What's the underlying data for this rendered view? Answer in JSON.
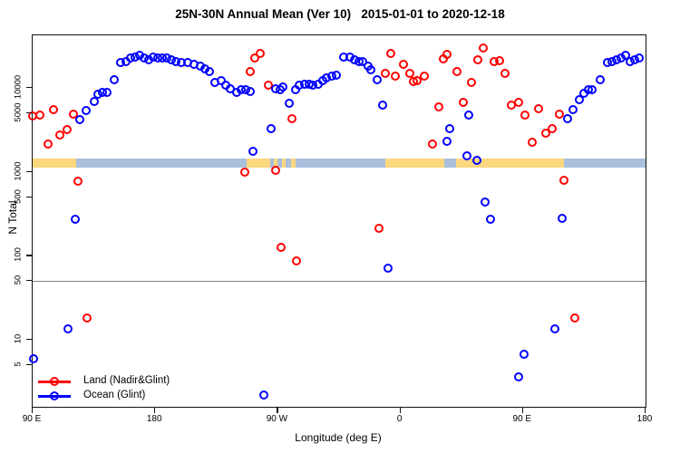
{
  "title": "25N-30N Annual Mean (Ver 10)   2015-01-01 to 2020-12-18",
  "chart_data": {
    "type": "scatter",
    "title": "25N-30N Annual Mean (Ver 10)   2015-01-01 to 2020-12-18",
    "xlabel": "Longitude (deg E)",
    "ylabel": "N Total",
    "x_axis": {
      "note": "longitude axis wraps eastward starting at 90E; stored as degrees east of Greenwich increasing continuously 90..540",
      "lim": [
        90,
        540
      ],
      "ticks": [
        {
          "pos": 90,
          "label": "90 E"
        },
        {
          "pos": 180,
          "label": "180"
        },
        {
          "pos": 270,
          "label": "90 W"
        },
        {
          "pos": 360,
          "label": "0"
        },
        {
          "pos": 450,
          "label": "90 E"
        },
        {
          "pos": 540,
          "label": "180"
        }
      ]
    },
    "y_axis": {
      "scale": "log10",
      "lim": [
        1.6,
        42000
      ],
      "ticks": [
        {
          "value": 5,
          "label": "5"
        },
        {
          "value": 10,
          "label": "10"
        },
        {
          "value": 50,
          "label": "50"
        },
        {
          "value": 100,
          "label": "100"
        },
        {
          "value": 500,
          "label": "500"
        },
        {
          "value": 1000,
          "label": "1000"
        },
        {
          "value": 5000,
          "label": "5000"
        },
        {
          "value": 10000,
          "label": "10000"
        }
      ],
      "grid": false
    },
    "reference_line": {
      "y": 50,
      "color": "#7f7f7f"
    },
    "surface_band": {
      "description": "land/ocean surface-type strip drawn across the plot near y=1200",
      "value_range": [
        1130,
        1430
      ],
      "colors": {
        "land": "#FCD77E",
        "ocean": "#A9BFDC"
      },
      "segments": [
        {
          "from": 90,
          "to": 122,
          "type": "land"
        },
        {
          "from": 122,
          "to": 247,
          "type": "ocean"
        },
        {
          "from": 247,
          "to": 264.5,
          "type": "land"
        },
        {
          "from": 264.5,
          "to": 349,
          "type": "ocean"
        },
        {
          "from": 349,
          "to": 480,
          "type": "land"
        },
        {
          "from": 480,
          "to": 540,
          "type": "ocean"
        },
        {
          "from": 392,
          "to": 401,
          "type": "ocean"
        },
        {
          "from": 267,
          "to": 270,
          "type": "land"
        },
        {
          "from": 273,
          "to": 276,
          "type": "land"
        },
        {
          "from": 280,
          "to": 283,
          "type": "land"
        }
      ]
    },
    "legend": {
      "position": "bottom-left"
    },
    "series": [
      {
        "name": "Land (Nadir&Glint)",
        "color": "#FF0000",
        "points": [
          [
            90,
            4600
          ],
          [
            95,
            4700
          ],
          [
            101,
            2140
          ],
          [
            105.5,
            5500
          ],
          [
            110,
            2740
          ],
          [
            115,
            3170
          ],
          [
            120,
            4880
          ],
          [
            123,
            780
          ],
          [
            130,
            18
          ],
          [
            246,
            980
          ],
          [
            249.5,
            15500
          ],
          [
            253,
            22500
          ],
          [
            257,
            25400
          ],
          [
            263,
            10700
          ],
          [
            268.5,
            1030
          ],
          [
            272.5,
            126
          ],
          [
            280.5,
            4300
          ],
          [
            284,
            88
          ],
          [
            344.5,
            215
          ],
          [
            349,
            14900
          ],
          [
            353,
            25400
          ],
          [
            356,
            13700
          ],
          [
            362.5,
            19000
          ],
          [
            367,
            14900
          ],
          [
            369.5,
            11900
          ],
          [
            372,
            12200
          ],
          [
            377.5,
            13900
          ],
          [
            383.5,
            2140
          ],
          [
            388,
            5980
          ],
          [
            391.5,
            21900
          ],
          [
            394.5,
            24800
          ],
          [
            401.5,
            15500
          ],
          [
            406,
            6700
          ],
          [
            412.5,
            11600
          ],
          [
            416.8,
            21500
          ],
          [
            421,
            29900
          ],
          [
            429,
            20200
          ],
          [
            432.5,
            21000
          ],
          [
            437,
            14900
          ],
          [
            441.5,
            6140
          ],
          [
            447,
            6670
          ],
          [
            451.5,
            4680
          ],
          [
            457,
            2220
          ],
          [
            461.5,
            5660
          ],
          [
            467,
            2850
          ],
          [
            471.5,
            3230
          ],
          [
            477,
            4790
          ],
          [
            480,
            790
          ],
          [
            488,
            18
          ]
        ]
      },
      {
        "name": "Ocean (Glint)",
        "color": "#0000FF",
        "points": [
          [
            90.5,
            6
          ],
          [
            116,
            13.4
          ],
          [
            121,
            271
          ],
          [
            124.5,
            4130
          ],
          [
            129,
            5380
          ],
          [
            135,
            6780
          ],
          [
            138,
            8350
          ],
          [
            141.5,
            8690
          ],
          [
            144.5,
            8690
          ],
          [
            150,
            12600
          ],
          [
            154.5,
            19900
          ],
          [
            158.5,
            20600
          ],
          [
            162,
            22500
          ],
          [
            165.5,
            23400
          ],
          [
            168.5,
            24400
          ],
          [
            172,
            22500
          ],
          [
            175.5,
            21500
          ],
          [
            178.5,
            23400
          ],
          [
            182,
            22500
          ],
          [
            185.5,
            22500
          ],
          [
            188.5,
            22500
          ],
          [
            192,
            21500
          ],
          [
            195.5,
            20600
          ],
          [
            199,
            19900
          ],
          [
            204,
            19900
          ],
          [
            208.5,
            19000
          ],
          [
            213,
            18200
          ],
          [
            216.5,
            16800
          ],
          [
            219.5,
            15500
          ],
          [
            224,
            11600
          ],
          [
            228.5,
            12100
          ],
          [
            232,
            10700
          ],
          [
            235,
            9820
          ],
          [
            239.5,
            8690
          ],
          [
            243,
            9440
          ],
          [
            246.5,
            9440
          ],
          [
            249.5,
            9060
          ],
          [
            252,
            1740
          ],
          [
            260,
            2.2
          ],
          [
            265,
            3230
          ],
          [
            268.5,
            9820
          ],
          [
            271.5,
            9440
          ],
          [
            274,
            10300
          ],
          [
            278.5,
            6520
          ],
          [
            283,
            9440
          ],
          [
            286,
            10700
          ],
          [
            289.5,
            11100
          ],
          [
            293,
            11100
          ],
          [
            296,
            10700
          ],
          [
            299.5,
            11100
          ],
          [
            303,
            12100
          ],
          [
            306,
            13100
          ],
          [
            309.5,
            13700
          ],
          [
            313,
            14200
          ],
          [
            318,
            23000
          ],
          [
            323,
            23400
          ],
          [
            326,
            21500
          ],
          [
            329.5,
            20600
          ],
          [
            332.5,
            20600
          ],
          [
            336,
            18200
          ],
          [
            338,
            16500
          ],
          [
            343,
            12600
          ],
          [
            347,
            6250
          ],
          [
            351,
            71
          ],
          [
            394,
            2320
          ],
          [
            396.5,
            3280
          ],
          [
            410,
            4700
          ],
          [
            409,
            1540
          ],
          [
            416,
            1360
          ],
          [
            422,
            434
          ],
          [
            426,
            271
          ],
          [
            447,
            3.6
          ],
          [
            451,
            6.7
          ],
          [
            473.5,
            13.4
          ],
          [
            479,
            276
          ],
          [
            482.5,
            4300
          ],
          [
            487,
            5520
          ],
          [
            491.5,
            7240
          ],
          [
            495,
            8670
          ],
          [
            498,
            9370
          ],
          [
            501,
            9590
          ],
          [
            506.5,
            12600
          ],
          [
            512,
            19900
          ],
          [
            515.5,
            20600
          ],
          [
            519,
            21500
          ],
          [
            522,
            22500
          ],
          [
            525.5,
            24400
          ],
          [
            529,
            20600
          ],
          [
            532,
            21500
          ],
          [
            535.5,
            22500
          ]
        ]
      }
    ]
  }
}
